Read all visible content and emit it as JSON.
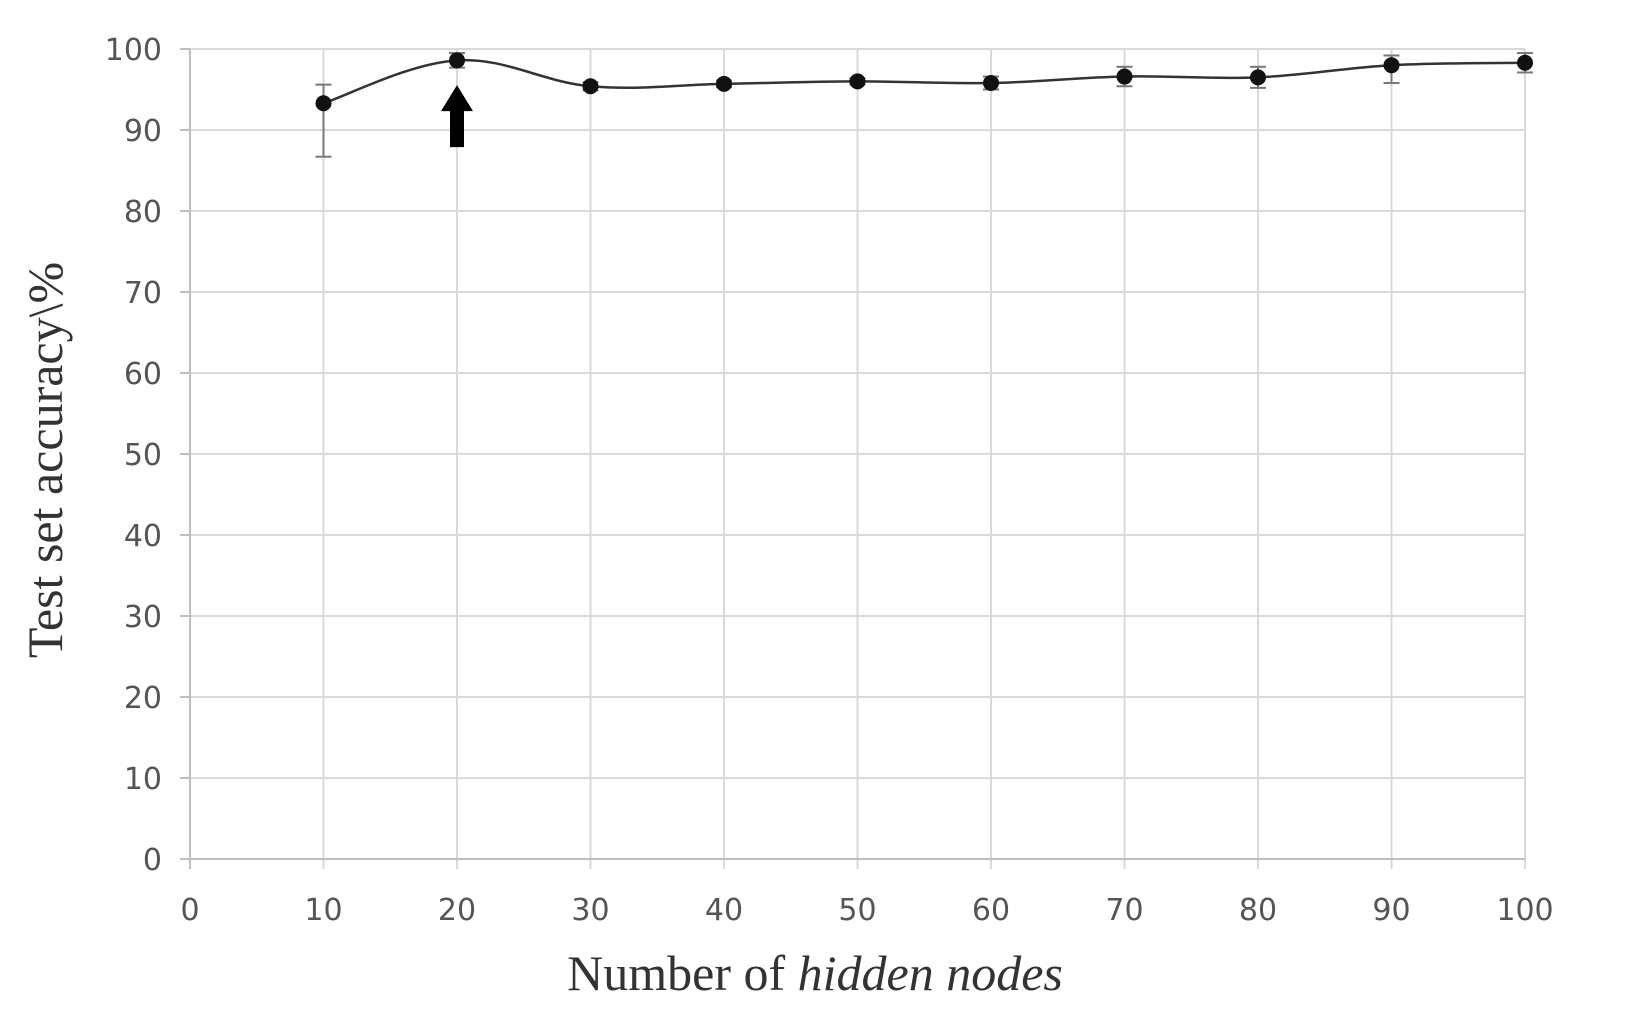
{
  "chart_data": {
    "type": "line",
    "xlabel_prefix": "Number of ",
    "xlabel_italic": "hidden nodes",
    "ylabel": "Test set accuracy\\%",
    "xlim": [
      0,
      100
    ],
    "ylim": [
      0,
      100
    ],
    "x_ticks": [
      0,
      10,
      20,
      30,
      40,
      50,
      60,
      70,
      80,
      90,
      100
    ],
    "y_ticks": [
      0,
      10,
      20,
      30,
      40,
      50,
      60,
      70,
      80,
      90,
      100
    ],
    "grid": true,
    "legend": "none",
    "series": [
      {
        "x": [
          10,
          20,
          30,
          40,
          50,
          60,
          70,
          80,
          90,
          100
        ],
        "y": [
          93.3,
          98.6,
          95.4,
          95.7,
          96.0,
          95.8,
          96.6,
          96.5,
          98.0,
          98.3
        ],
        "err_high": [
          95.6,
          99.5,
          95.9,
          96.1,
          96.4,
          96.6,
          97.8,
          97.8,
          99.2,
          99.5
        ],
        "err_low": [
          86.7,
          97.7,
          94.9,
          95.3,
          95.6,
          95.0,
          95.4,
          95.2,
          95.8,
          97.1
        ]
      }
    ],
    "annotations": [
      {
        "type": "arrow",
        "x": 20,
        "y": 88.5,
        "direction": "up"
      }
    ],
    "colors": {
      "line": "#333333",
      "marker": "#111111",
      "grid": "#d9d9d9",
      "error_bar": "#777777"
    }
  }
}
